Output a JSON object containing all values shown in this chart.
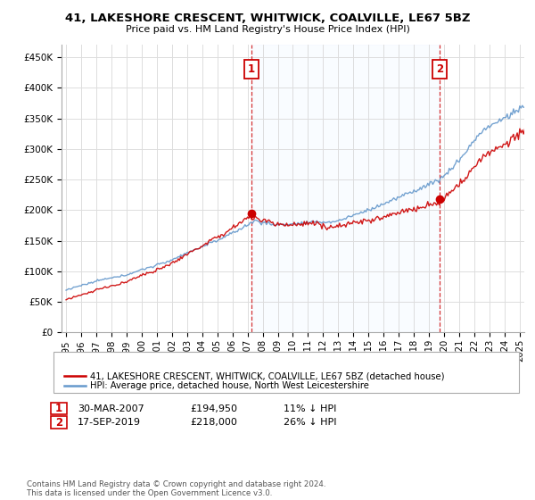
{
  "title": "41, LAKESHORE CRESCENT, WHITWICK, COALVILLE, LE67 5BZ",
  "subtitle": "Price paid vs. HM Land Registry's House Price Index (HPI)",
  "legend_line1": "41, LAKESHORE CRESCENT, WHITWICK, COALVILLE, LE67 5BZ (detached house)",
  "legend_line2": "HPI: Average price, detached house, North West Leicestershire",
  "annotation1_label": "1",
  "annotation1_date": "30-MAR-2007",
  "annotation1_price": 194950,
  "annotation1_pct": "11% ↓ HPI",
  "annotation1_year": 2007.25,
  "annotation2_label": "2",
  "annotation2_date": "17-SEP-2019",
  "annotation2_price": 218000,
  "annotation2_pct": "26% ↓ HPI",
  "annotation2_year": 2019.71,
  "ylim_min": 0,
  "ylim_max": 470000,
  "footer": "Contains HM Land Registry data © Crown copyright and database right 2024.\nThis data is licensed under the Open Government Licence v3.0.",
  "property_color": "#cc0000",
  "hpi_color": "#6699cc",
  "hpi_fill_color": "#ddeeff",
  "background_color": "#ffffff",
  "grid_color": "#dddddd"
}
